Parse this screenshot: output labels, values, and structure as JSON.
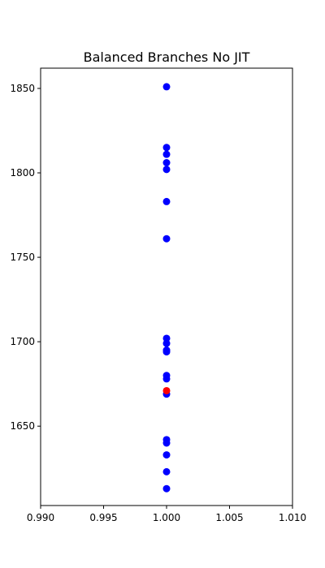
{
  "chart_data": {
    "type": "scatter",
    "title": "Balanced Branches No JIT",
    "xlabel": "",
    "ylabel": "",
    "xlim": [
      0.99,
      1.01
    ],
    "ylim": [
      1603,
      1862
    ],
    "xticks": [
      0.99,
      0.995,
      1.0,
      1.005,
      1.01
    ],
    "xtick_labels": [
      "0.990",
      "0.995",
      "1.000",
      "1.005",
      "1.010"
    ],
    "yticks": [
      1650,
      1700,
      1750,
      1800,
      1850
    ],
    "ytick_labels": [
      "1650",
      "1700",
      "1750",
      "1800",
      "1850"
    ],
    "grid": false,
    "series": [
      {
        "color": "#0000ff",
        "points": [
          {
            "x": 1.0,
            "y": 1851
          },
          {
            "x": 1.0,
            "y": 1815
          },
          {
            "x": 1.0,
            "y": 1811
          },
          {
            "x": 1.0,
            "y": 1806
          },
          {
            "x": 1.0,
            "y": 1802
          },
          {
            "x": 1.0,
            "y": 1783
          },
          {
            "x": 1.0,
            "y": 1761
          },
          {
            "x": 1.0,
            "y": 1702
          },
          {
            "x": 1.0,
            "y": 1699
          },
          {
            "x": 1.0,
            "y": 1695
          },
          {
            "x": 1.0,
            "y": 1694
          },
          {
            "x": 1.0,
            "y": 1680
          },
          {
            "x": 1.0,
            "y": 1678
          },
          {
            "x": 1.0,
            "y": 1669
          },
          {
            "x": 1.0,
            "y": 1642
          },
          {
            "x": 1.0,
            "y": 1640
          },
          {
            "x": 1.0,
            "y": 1633
          },
          {
            "x": 1.0,
            "y": 1623
          },
          {
            "x": 1.0,
            "y": 1613
          }
        ]
      },
      {
        "color": "#ff0000",
        "points": [
          {
            "x": 1.0,
            "y": 1671
          }
        ]
      }
    ]
  }
}
